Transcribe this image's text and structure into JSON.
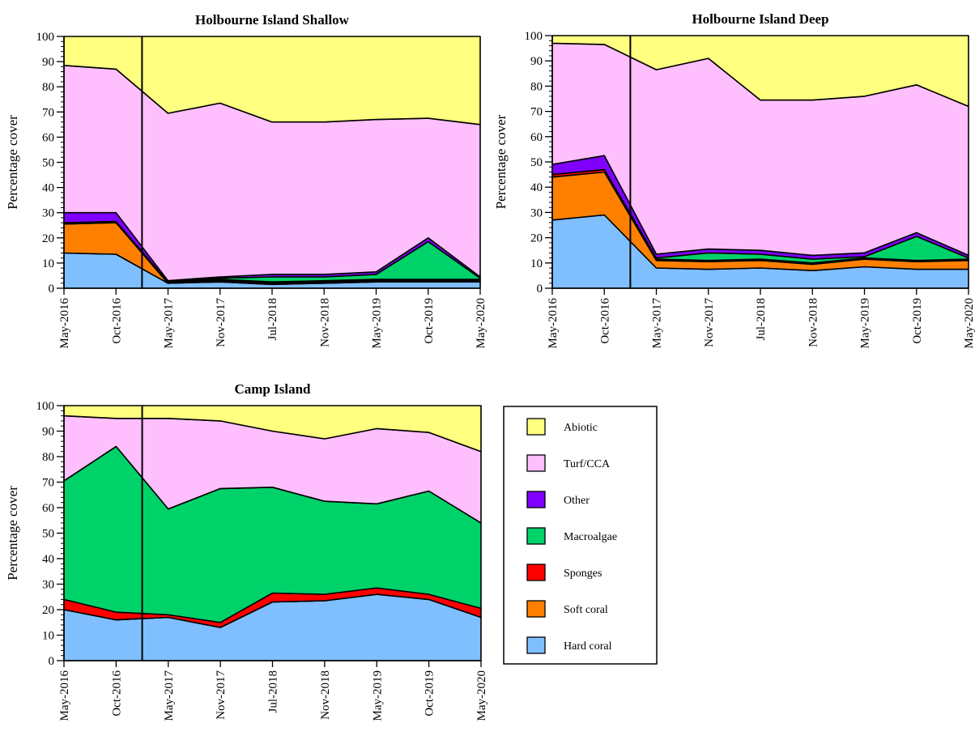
{
  "legend": {
    "items": [
      {
        "key": "abiotic",
        "label": "Abiotic",
        "color": "#ffff80"
      },
      {
        "key": "turf",
        "label": "Turf/CCA",
        "color": "#ffbfff"
      },
      {
        "key": "other",
        "label": "Other",
        "color": "#8000ff"
      },
      {
        "key": "macro",
        "label": "Macroalgae",
        "color": "#00d26a"
      },
      {
        "key": "sponges",
        "label": "Sponges",
        "color": "#ff0000"
      },
      {
        "key": "soft",
        "label": "Soft coral",
        "color": "#ff8000"
      },
      {
        "key": "hard",
        "label": "Hard coral",
        "color": "#80bfff"
      }
    ]
  },
  "chart_data": [
    {
      "type": "area",
      "stacked": true,
      "title": "Holbourne Island Shallow",
      "ylabel": "Percentage cover",
      "ylim": [
        0,
        100
      ],
      "yticks": [
        0,
        10,
        20,
        30,
        40,
        50,
        60,
        70,
        80,
        90,
        100
      ],
      "categories": [
        "May-2016",
        "Oct-2016",
        "May-2017",
        "Nov-2017",
        "Jul-2018",
        "Nov-2018",
        "May-2019",
        "Oct-2019",
        "May-2020"
      ],
      "event_marker_x": 1.5,
      "series": [
        {
          "key": "hard",
          "values": [
            14,
            13.5,
            2,
            2.5,
            1.5,
            2,
            2.5,
            2.5,
            2.5
          ]
        },
        {
          "key": "soft",
          "values": [
            11.5,
            12.5,
            0,
            0.5,
            0.5,
            0.5,
            0.5,
            0.5,
            0.5
          ]
        },
        {
          "key": "sponges",
          "values": [
            0.5,
            0.5,
            0,
            0.5,
            0.5,
            0.5,
            0.5,
            0.5,
            0.5
          ]
        },
        {
          "key": "macro",
          "values": [
            0,
            0,
            0.5,
            0.5,
            2,
            1.5,
            2,
            15,
            0.5
          ]
        },
        {
          "key": "other",
          "values": [
            4,
            3.5,
            0.5,
            0.5,
            1,
            1,
            1,
            1.5,
            0.5
          ]
        },
        {
          "key": "turf",
          "values": [
            58.5,
            57,
            66.5,
            69,
            60.5,
            60.5,
            60.5,
            47.5,
            60.5
          ]
        },
        {
          "key": "abiotic",
          "values": [
            11.5,
            13,
            30.5,
            26.5,
            34,
            34,
            33,
            32.5,
            35
          ]
        }
      ]
    },
    {
      "type": "area",
      "stacked": true,
      "title": "Holbourne Island Deep",
      "ylabel": "Percentage cover",
      "ylim": [
        0,
        100
      ],
      "yticks": [
        0,
        10,
        20,
        30,
        40,
        50,
        60,
        70,
        80,
        90,
        100
      ],
      "categories": [
        "May-2016",
        "Oct-2016",
        "May-2017",
        "Nov-2017",
        "Jul-2018",
        "Nov-2018",
        "May-2019",
        "Oct-2019",
        "May-2020"
      ],
      "event_marker_x": 1.5,
      "series": [
        {
          "key": "hard",
          "values": [
            27,
            29,
            8,
            7.5,
            8,
            7,
            8.5,
            7.5,
            7.5
          ]
        },
        {
          "key": "soft",
          "values": [
            17,
            17,
            3,
            3,
            3,
            2.5,
            3,
            3,
            3.5
          ]
        },
        {
          "key": "sponges",
          "values": [
            1,
            1,
            0.5,
            0.5,
            0.5,
            0.5,
            0.5,
            0.5,
            0.5
          ]
        },
        {
          "key": "macro",
          "values": [
            0,
            0,
            0.5,
            3,
            2,
            1.5,
            0.5,
            9.5,
            0.5
          ]
        },
        {
          "key": "other",
          "values": [
            4,
            5.5,
            1.5,
            1.5,
            1.5,
            1.5,
            1.5,
            1.5,
            1
          ]
        },
        {
          "key": "turf",
          "values": [
            48,
            44,
            73,
            75.5,
            59.5,
            61.5,
            62,
            58.5,
            59
          ]
        },
        {
          "key": "abiotic",
          "values": [
            3,
            3.5,
            13.5,
            9,
            25.5,
            25.5,
            24,
            19.5,
            28
          ]
        }
      ]
    },
    {
      "type": "area",
      "stacked": true,
      "title": "Camp Island",
      "ylabel": "Percentage cover",
      "ylim": [
        0,
        100
      ],
      "yticks": [
        0,
        10,
        20,
        30,
        40,
        50,
        60,
        70,
        80,
        90,
        100
      ],
      "categories": [
        "May-2016",
        "Oct-2016",
        "May-2017",
        "Nov-2017",
        "Jul-2018",
        "Nov-2018",
        "May-2019",
        "Oct-2019",
        "May-2020"
      ],
      "event_marker_x": 1.5,
      "series": [
        {
          "key": "hard",
          "values": [
            20,
            16,
            17,
            13,
            23,
            23.5,
            26,
            24,
            17
          ]
        },
        {
          "key": "soft",
          "values": [
            0,
            0,
            0,
            0,
            0,
            0,
            0,
            0,
            0
          ]
        },
        {
          "key": "sponges",
          "values": [
            4,
            3,
            1,
            2,
            3.5,
            2.5,
            2.5,
            2,
            3.5
          ]
        },
        {
          "key": "macro",
          "values": [
            46.5,
            65,
            41.5,
            52.5,
            41.5,
            36.5,
            33,
            40.5,
            33.5
          ]
        },
        {
          "key": "other",
          "values": [
            0,
            0,
            0,
            0,
            0,
            0,
            0,
            0,
            0
          ]
        },
        {
          "key": "turf",
          "values": [
            25.5,
            11,
            35.5,
            26.5,
            22,
            24.5,
            29.5,
            23,
            28
          ]
        },
        {
          "key": "abiotic",
          "values": [
            4,
            5,
            5,
            6,
            10,
            13,
            9,
            10.5,
            18
          ]
        }
      ]
    }
  ]
}
